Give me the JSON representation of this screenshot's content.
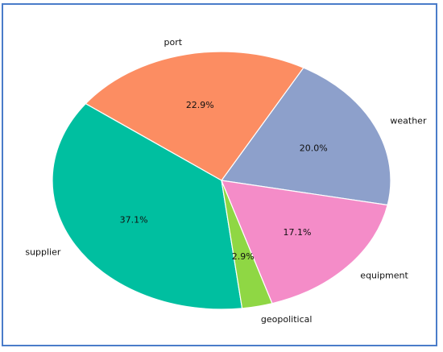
{
  "chart_data": {
    "type": "pie",
    "slices": [
      {
        "label": "weather",
        "value": 20.0,
        "pct_label": "20.0%",
        "color": "#8DA0CB"
      },
      {
        "label": "port",
        "value": 22.9,
        "pct_label": "22.9%",
        "color": "#FC8D62"
      },
      {
        "label": "supplier",
        "value": 37.1,
        "pct_label": "37.1%",
        "color": "#00BFA0"
      },
      {
        "label": "geopolitical",
        "value": 2.9,
        "pct_label": "2.9%",
        "color": "#8FD744"
      },
      {
        "label": "equipment",
        "value": 17.1,
        "pct_label": "17.1%",
        "color": "#F48CC8"
      }
    ],
    "title": "",
    "legend": "none",
    "edge_color": "#ffffff"
  }
}
